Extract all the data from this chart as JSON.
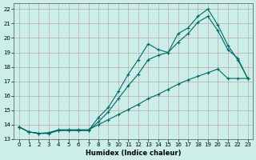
{
  "xlabel": "Humidex (Indice chaleur)",
  "background_color": "#cceee8",
  "grid_color": "#c0a8a8",
  "line_color": "#006868",
  "xlim": [
    -0.5,
    23.5
  ],
  "ylim": [
    13.0,
    22.4
  ],
  "yticks": [
    13,
    14,
    15,
    16,
    17,
    18,
    19,
    20,
    21,
    22
  ],
  "xticks": [
    0,
    1,
    2,
    3,
    4,
    5,
    6,
    7,
    8,
    9,
    10,
    11,
    12,
    13,
    14,
    15,
    16,
    17,
    18,
    19,
    20,
    21,
    22,
    23
  ],
  "curve1_x": [
    0,
    1,
    2,
    3,
    4,
    5,
    6,
    7,
    8,
    9,
    10,
    11,
    12,
    13,
    14,
    15,
    16,
    17,
    18,
    19,
    20,
    21,
    22,
    23
  ],
  "curve1_y": [
    13.85,
    13.5,
    13.4,
    13.4,
    13.6,
    13.6,
    13.6,
    13.6,
    14.5,
    15.2,
    16.3,
    17.5,
    18.5,
    19.6,
    19.2,
    19.0,
    20.3,
    20.7,
    21.5,
    22.0,
    20.9,
    19.5,
    18.5,
    17.2
  ],
  "curve2_x": [
    0,
    1,
    2,
    3,
    4,
    5,
    6,
    7,
    8,
    9,
    10,
    11,
    12,
    13,
    14,
    15,
    16,
    17,
    18,
    19,
    20,
    21,
    22,
    23
  ],
  "curve2_y": [
    13.85,
    13.5,
    13.4,
    13.4,
    13.6,
    13.6,
    13.6,
    13.6,
    14.2,
    14.9,
    15.8,
    16.7,
    17.5,
    18.5,
    18.8,
    19.0,
    19.7,
    20.3,
    21.1,
    21.5,
    20.5,
    19.2,
    18.6,
    17.2
  ],
  "curve3_x": [
    0,
    1,
    2,
    3,
    4,
    5,
    6,
    7,
    8,
    9,
    10,
    11,
    12,
    13,
    14,
    15,
    16,
    17,
    18,
    19,
    20,
    21,
    22,
    23
  ],
  "curve3_y": [
    13.85,
    13.5,
    13.4,
    13.45,
    13.65,
    13.65,
    13.65,
    13.65,
    14.0,
    14.35,
    14.7,
    15.05,
    15.4,
    15.8,
    16.1,
    16.45,
    16.8,
    17.1,
    17.35,
    17.6,
    17.85,
    17.2,
    17.2,
    17.2
  ],
  "marker_style": "+",
  "marker_size": 3,
  "linewidth": 0.8,
  "tick_fontsize": 5,
  "xlabel_fontsize": 6
}
